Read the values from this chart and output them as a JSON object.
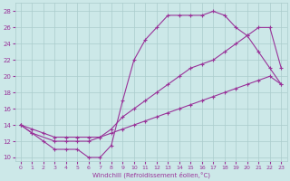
{
  "xlabel": "Windchill (Refroidissement éolien,°C)",
  "bg_color": "#cce8e8",
  "grid_color": "#aacccc",
  "line_color": "#993399",
  "xlim": [
    -0.5,
    23.5
  ],
  "ylim": [
    9.5,
    29
  ],
  "xticks": [
    0,
    1,
    2,
    3,
    4,
    5,
    6,
    7,
    8,
    9,
    10,
    11,
    12,
    13,
    14,
    15,
    16,
    17,
    18,
    19,
    20,
    21,
    22,
    23
  ],
  "yticks": [
    10,
    12,
    14,
    16,
    18,
    20,
    22,
    24,
    26,
    28
  ],
  "line1_x": [
    0,
    1,
    2,
    3,
    4,
    5,
    6,
    7,
    8,
    9,
    10,
    11,
    12,
    13,
    14,
    15,
    16,
    17,
    18,
    19,
    20,
    21,
    22,
    23
  ],
  "line1_y": [
    14,
    13,
    12,
    11,
    11,
    11,
    10,
    10,
    11.5,
    17,
    22,
    24.5,
    26,
    27.5,
    27.5,
    27.5,
    27.5,
    28,
    27.5,
    26,
    25,
    23,
    21,
    19
  ],
  "line2_x": [
    0,
    1,
    3,
    4,
    5,
    6,
    7,
    8,
    9,
    10,
    11,
    12,
    13,
    14,
    15,
    16,
    17,
    18,
    19,
    20,
    21,
    22,
    23
  ],
  "line2_y": [
    14,
    13,
    12,
    12,
    12,
    12,
    12.5,
    13.5,
    15,
    16,
    17,
    18,
    19,
    20,
    21,
    21.5,
    22,
    23,
    24,
    25,
    26,
    26,
    21
  ],
  "line3_x": [
    0,
    1,
    2,
    3,
    4,
    5,
    6,
    7,
    8,
    9,
    10,
    11,
    12,
    13,
    14,
    15,
    16,
    17,
    18,
    19,
    20,
    21,
    22,
    23
  ],
  "line3_y": [
    14,
    13.5,
    13,
    12.5,
    12.5,
    12.5,
    12.5,
    12.5,
    13,
    13.5,
    14,
    14.5,
    15,
    15.5,
    16,
    16.5,
    17,
    17.5,
    18,
    18.5,
    19,
    19.5,
    20,
    19
  ]
}
